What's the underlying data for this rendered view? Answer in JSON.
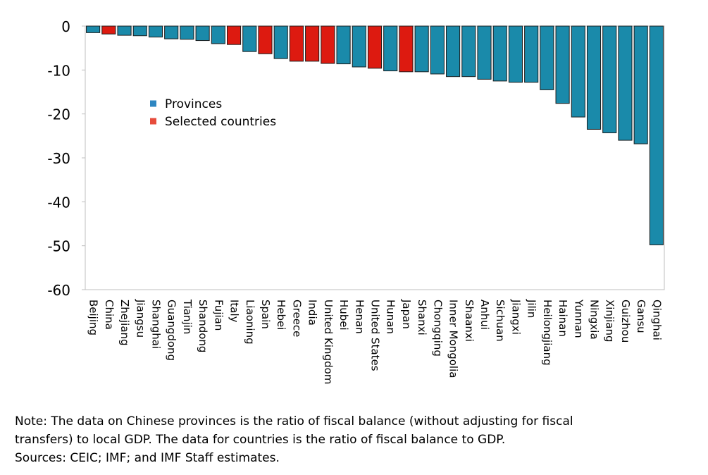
{
  "chart_data": {
    "type": "bar",
    "title": "",
    "xlabel": "",
    "ylabel": "",
    "ylim": [
      -60,
      0
    ],
    "yticks": [
      0,
      -10,
      -20,
      -30,
      -40,
      -50,
      -60
    ],
    "grid": false,
    "legend_position": "upper-left inside plot",
    "legend": [
      {
        "key": "province",
        "label": "Provinces",
        "color": "#2e86c1"
      },
      {
        "key": "country",
        "label": "Selected countries",
        "color": "#e74c3c"
      }
    ],
    "bar_colors": {
      "province": "#1a8aaa",
      "country": "#dd1a10"
    },
    "categories": [
      "Beijing",
      "China",
      "Zhejiang",
      "Jiangsu",
      "Shanghai",
      "Guangdong",
      "Tianjin",
      "Shandong",
      "Fujian",
      "Italy",
      "Liaoning",
      "Spain",
      "Hebei",
      "Greece",
      "India",
      "United Kingdom",
      "Hubei",
      "Henan",
      "United States",
      "Hunan",
      "Japan",
      "Shanxi",
      "Chongqing",
      "Inner Mongolia",
      "Shaanxi",
      "Anhui",
      "Sichuan",
      "Jiangxi",
      "Jilin",
      "Heilongjiang",
      "Hainan",
      "Yunnan",
      "Ningxia",
      "Xinjiang",
      "Guizhou",
      "Gansu",
      "Qinghai"
    ],
    "groups": [
      "province",
      "country",
      "province",
      "province",
      "province",
      "province",
      "province",
      "province",
      "province",
      "country",
      "province",
      "country",
      "province",
      "country",
      "country",
      "country",
      "province",
      "province",
      "country",
      "province",
      "country",
      "province",
      "province",
      "province",
      "province",
      "province",
      "province",
      "province",
      "province",
      "province",
      "province",
      "province",
      "province",
      "province",
      "province",
      "province",
      "province"
    ],
    "values": [
      -1.5,
      -1.8,
      -2.1,
      -2.2,
      -2.5,
      -2.9,
      -3.0,
      -3.3,
      -4.0,
      -4.2,
      -5.8,
      -6.3,
      -7.4,
      -8.0,
      -8.0,
      -8.5,
      -8.6,
      -9.3,
      -9.6,
      -10.2,
      -10.4,
      -10.4,
      -10.9,
      -11.5,
      -11.5,
      -12.1,
      -12.5,
      -12.8,
      -12.8,
      -14.5,
      -17.6,
      -20.7,
      -23.5,
      -24.3,
      -26.0,
      -26.8,
      -49.8
    ]
  },
  "note": {
    "line1": "Note: The data on Chinese provinces is the ratio of fiscal balance (without adjusting for fiscal",
    "line2": "transfers) to local GDP. The data for countries is the ratio of fiscal balance to GDP.",
    "line3": "Sources: CEIC; IMF; and IMF Staff estimates."
  }
}
